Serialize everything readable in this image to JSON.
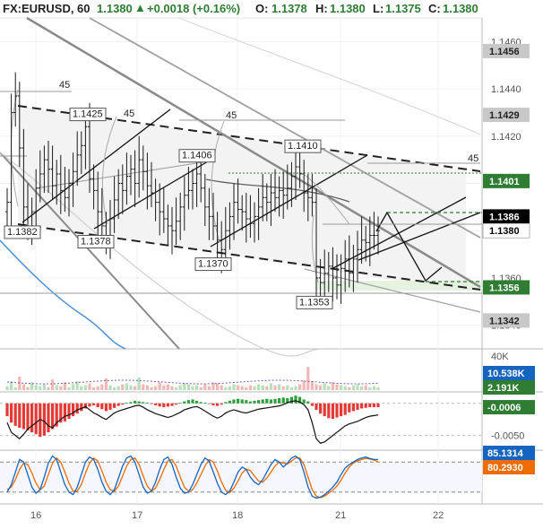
{
  "header": {
    "symbol": "FX:EURUSD, 60",
    "price": "1.1380",
    "change_arrow": "▲",
    "change": "+0.0018 (+0.16%)",
    "o_label": "O:",
    "o_value": "1.1378",
    "h_label": "H:",
    "h_value": "1.1380",
    "l_label": "L:",
    "l_value": "1.1375",
    "c_label": "C:",
    "c_value": "1.1380"
  },
  "chart_data": [
    {
      "type": "candlestick",
      "ylim": [
        1.133,
        1.147
      ],
      "y_ticks": [
        "1.1460",
        "1.1440",
        "1.1420",
        "1.1400",
        "1.1380",
        "1.1360",
        "1.1340"
      ],
      "x_ticks": [
        "16",
        "17",
        "18",
        "21",
        "22"
      ],
      "x_tick_pos": [
        40,
        153,
        265,
        380,
        489
      ],
      "price_tags": [
        {
          "label": "1.1456",
          "value": 1.1456,
          "style": "gray"
        },
        {
          "label": "1.1429",
          "value": 1.1429,
          "style": "gray"
        },
        {
          "label": "1.1401",
          "value": 1.1401,
          "style": "green"
        },
        {
          "label": "1.1386",
          "value": 1.1386,
          "style": "black"
        },
        {
          "label": "1.1380",
          "value": 1.138,
          "style": "white"
        },
        {
          "label": "1.1356",
          "value": 1.1356,
          "style": "green"
        },
        {
          "label": "1.1342",
          "value": 1.1342,
          "style": "gray"
        }
      ],
      "pivot_labels": [
        {
          "text": "1.1425",
          "value": 1.1425
        },
        {
          "text": "1.1406",
          "value": 1.1406
        },
        {
          "text": "1.1410",
          "value": 1.141
        },
        {
          "text": "1.1382",
          "value": 1.1382
        },
        {
          "text": "1.1378",
          "value": 1.1378
        },
        {
          "text": "1.1370",
          "value": 1.137
        },
        {
          "text": "1.1353",
          "value": 1.1353
        }
      ],
      "angle_labels": [
        "45",
        "45",
        "45",
        "45"
      ],
      "close": [
        1.1392,
        1.143,
        1.1437,
        1.1415,
        1.139,
        1.1382,
        1.1388,
        1.1398,
        1.1404,
        1.141,
        1.1406,
        1.1399,
        1.1404,
        1.1397,
        1.1394,
        1.14,
        1.1405,
        1.1412,
        1.1416,
        1.1424,
        1.1402,
        1.1397,
        1.1388,
        1.1382,
        1.1378,
        1.1385,
        1.1393,
        1.14,
        1.1397,
        1.1403,
        1.1406,
        1.14,
        1.141,
        1.1405,
        1.1399,
        1.1396,
        1.1392,
        1.1388,
        1.1385,
        1.1382,
        1.138,
        1.1384,
        1.139,
        1.1395,
        1.1397,
        1.14,
        1.1404,
        1.1398,
        1.139,
        1.1386,
        1.1382,
        1.1376,
        1.1372,
        1.138,
        1.1386,
        1.1392,
        1.1389,
        1.1388,
        1.1385,
        1.1383,
        1.1386,
        1.139,
        1.1394,
        1.1392,
        1.1396,
        1.1394,
        1.1397,
        1.1395,
        1.1398,
        1.1403,
        1.1407,
        1.1404,
        1.1396,
        1.1394,
        1.1392,
        1.136,
        1.1358,
        1.1362,
        1.1365,
        1.136,
        1.1357,
        1.1364,
        1.1368,
        1.1362,
        1.1368,
        1.1372,
        1.1376,
        1.1375,
        1.1378,
        1.1378,
        1.138
      ]
    },
    {
      "type": "bar",
      "name": "volume",
      "y_ticks": [
        "40K"
      ],
      "tags": [
        {
          "label": "10.538K",
          "style": "blue"
        },
        {
          "label": "2.191K",
          "style": "green"
        }
      ],
      "values": [
        4,
        9,
        3,
        14,
        6,
        3,
        8,
        5,
        4,
        6,
        3,
        11,
        5,
        4,
        8,
        3,
        6,
        9,
        4,
        5,
        7,
        3,
        4,
        6,
        12,
        5,
        3,
        4,
        6,
        7,
        5,
        4,
        13,
        6,
        5,
        3,
        4,
        8,
        5,
        6,
        4,
        3,
        5,
        7,
        6,
        4,
        5,
        3,
        6,
        4,
        8,
        7,
        5,
        3,
        4,
        6,
        5,
        4,
        3,
        5,
        4,
        6,
        5,
        4,
        7,
        5,
        6,
        4,
        5,
        3,
        4,
        6,
        10,
        24,
        9,
        6,
        5,
        7,
        4,
        8,
        6,
        5,
        4,
        3,
        5,
        6,
        4,
        5,
        3,
        4,
        3
      ]
    },
    {
      "type": "histogram",
      "name": "macd",
      "y_ticks": [
        "-0.0050"
      ],
      "tags": [
        {
          "label": "-0.0006",
          "style": "green"
        }
      ],
      "values": [
        -0.002,
        -0.003,
        -0.0035,
        -0.0038,
        -0.004,
        -0.0042,
        -0.0045,
        -0.0048,
        -0.0052,
        -0.005,
        -0.0045,
        -0.004,
        -0.0036,
        -0.003,
        -0.0028,
        -0.0024,
        -0.002,
        -0.0016,
        -0.0012,
        -0.0008,
        -0.0005,
        -0.0003,
        -0.0006,
        -0.0009,
        -0.0012,
        -0.001,
        -0.0007,
        -0.0004,
        -0.0002,
        0.0001,
        0.0002,
        0.0004,
        0.0003,
        0.0002,
        0.0001,
        -0.0001,
        -0.0003,
        -0.0005,
        -0.0006,
        -0.0005,
        -0.0004,
        -0.0002,
        0.0001,
        0.0003,
        0.0005,
        0.0006,
        0.0004,
        0.0002,
        0.0001,
        -0.0001,
        -0.0003,
        -0.0004,
        -0.0002,
        0.0002,
        0.0004,
        0.0006,
        0.0007,
        0.0006,
        0.0005,
        0.0003,
        0.0004,
        0.0005,
        0.0006,
        0.0007,
        0.0006,
        0.0007,
        0.0008,
        0.0009,
        0.0008,
        0.001,
        0.0012,
        0.001,
        0.0006,
        0.0003,
        -0.0004,
        -0.001,
        -0.0016,
        -0.002,
        -0.0023,
        -0.0024,
        -0.0022,
        -0.002,
        -0.0018,
        -0.0014,
        -0.0012,
        -0.001,
        -0.0008,
        -0.0007,
        -0.0006,
        -0.0006,
        -0.0006
      ],
      "line": [
        -0.003,
        -0.0045,
        -0.005,
        -0.0055,
        -0.0048,
        -0.004,
        -0.0035,
        -0.003,
        -0.0025,
        -0.0028,
        -0.0035,
        -0.0038,
        -0.003,
        -0.0025,
        -0.002,
        -0.0018,
        -0.0015,
        -0.001,
        -0.0008,
        -0.0005,
        -0.001,
        -0.0015,
        -0.0018,
        -0.0022,
        -0.0025,
        -0.002,
        -0.0015,
        -0.0012,
        -0.001,
        -0.0008,
        -0.0006,
        -0.0004,
        -0.0003,
        -0.0006,
        -0.001,
        -0.0013,
        -0.0016,
        -0.0018,
        -0.002,
        -0.0022,
        -0.002,
        -0.0017,
        -0.0014,
        -0.001,
        -0.0008,
        -0.0006,
        -0.0005,
        -0.0008,
        -0.0012,
        -0.0016,
        -0.002,
        -0.0023,
        -0.002,
        -0.0015,
        -0.0012,
        -0.001,
        -0.0012,
        -0.0014,
        -0.0015,
        -0.0013,
        -0.0011,
        -0.0009,
        -0.0008,
        -0.0007,
        -0.0006,
        -0.0005,
        -0.0004,
        -0.0002,
        0.0001,
        0.0003,
        0.0004,
        0.0002,
        -0.0002,
        -0.001,
        -0.003,
        -0.0055,
        -0.0062,
        -0.006,
        -0.0055,
        -0.005,
        -0.0045,
        -0.004,
        -0.0035,
        -0.0032,
        -0.003,
        -0.0028,
        -0.0025,
        -0.0022,
        -0.002,
        -0.0019,
        -0.0018
      ]
    },
    {
      "type": "line",
      "name": "stochastic",
      "y_ticks": [],
      "tags": [
        {
          "label": "85.1314",
          "style": "blue"
        },
        {
          "label": "80.2930",
          "style": "orange"
        }
      ],
      "k": [
        20,
        35,
        60,
        85,
        80,
        55,
        30,
        18,
        25,
        50,
        78,
        92,
        85,
        60,
        35,
        20,
        15,
        30,
        55,
        80,
        90,
        85,
        65,
        40,
        22,
        15,
        25,
        48,
        72,
        88,
        92,
        80,
        55,
        30,
        18,
        22,
        40,
        65,
        85,
        90,
        75,
        50,
        28,
        18,
        20,
        35,
        55,
        75,
        88,
        82,
        60,
        38,
        20,
        15,
        22,
        40,
        60,
        70,
        65,
        50,
        40,
        35,
        45,
        60,
        75,
        85,
        80,
        70,
        78,
        88,
        92,
        85,
        60,
        30,
        12,
        8,
        10,
        15,
        22,
        30,
        40,
        55,
        68,
        75,
        80,
        85,
        88,
        90,
        87,
        85,
        85
      ],
      "d": [
        25,
        30,
        45,
        65,
        78,
        75,
        58,
        38,
        25,
        32,
        55,
        78,
        88,
        80,
        60,
        38,
        22,
        22,
        35,
        58,
        78,
        88,
        82,
        62,
        40,
        25,
        22,
        32,
        52,
        72,
        85,
        88,
        75,
        52,
        32,
        22,
        28,
        45,
        65,
        82,
        85,
        72,
        50,
        30,
        22,
        25,
        38,
        55,
        72,
        85,
        80,
        62,
        40,
        24,
        19,
        28,
        42,
        58,
        66,
        63,
        52,
        42,
        40,
        48,
        60,
        72,
        80,
        78,
        76,
        82,
        88,
        88,
        75,
        50,
        25,
        12,
        9,
        12,
        18,
        24,
        32,
        44,
        58,
        70,
        78,
        82,
        85,
        87,
        86,
        84,
        80
      ]
    }
  ]
}
